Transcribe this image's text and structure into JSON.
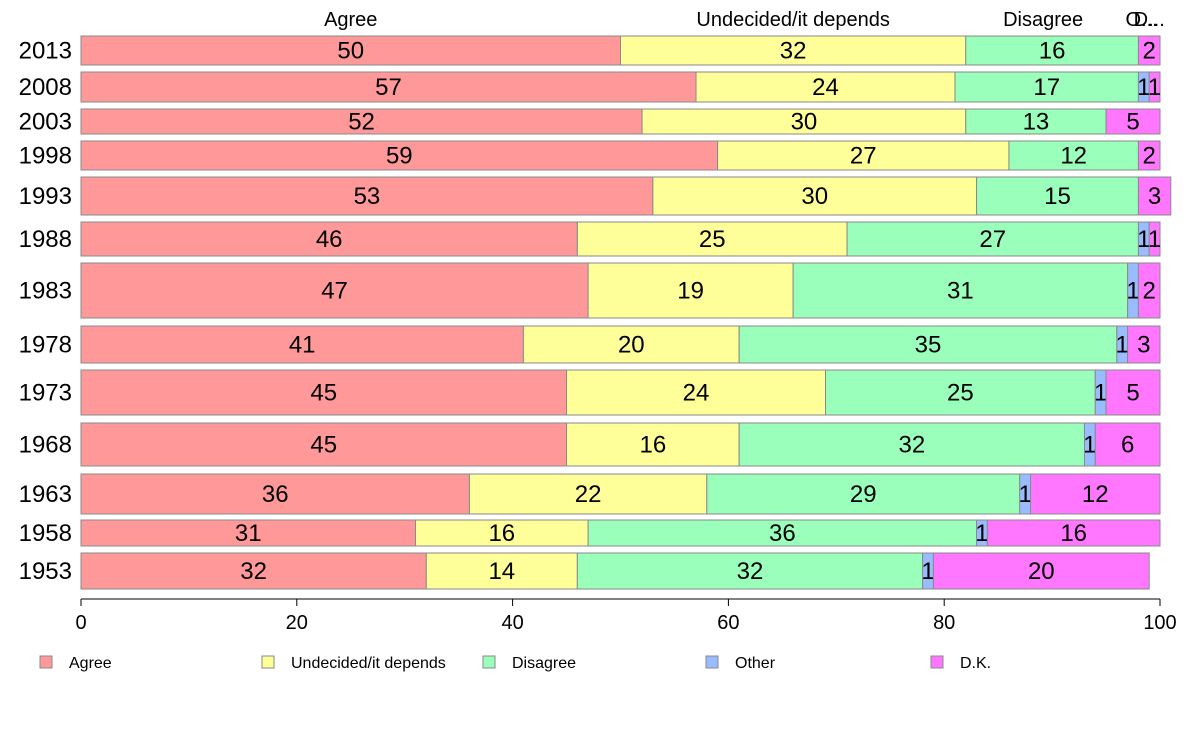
{
  "chart_data": {
    "type": "bar",
    "orientation": "horizontal",
    "stacked": true,
    "categories": [
      "2013",
      "2008",
      "2003",
      "1998",
      "1993",
      "1988",
      "1983",
      "1978",
      "1973",
      "1968",
      "1963",
      "1958",
      "1953"
    ],
    "series": [
      {
        "name": "Agree",
        "color": "#ff9999",
        "values": [
          50,
          57,
          52,
          59,
          53,
          46,
          47,
          41,
          45,
          45,
          36,
          31,
          32
        ]
      },
      {
        "name": "Undecided/it depends",
        "color": "#ffff99",
        "values": [
          32,
          24,
          30,
          27,
          30,
          25,
          19,
          20,
          24,
          16,
          22,
          16,
          14
        ]
      },
      {
        "name": "Disagree",
        "color": "#99ffbb",
        "values": [
          16,
          17,
          13,
          12,
          15,
          27,
          31,
          35,
          25,
          32,
          29,
          36,
          32
        ]
      },
      {
        "name": "Other",
        "color": "#99bbff",
        "values": [
          0,
          1,
          0,
          0,
          0,
          1,
          1,
          1,
          1,
          1,
          1,
          1,
          1
        ]
      },
      {
        "name": "D.K.",
        "color": "#ff77ff",
        "values": [
          2,
          1,
          5,
          2,
          3,
          1,
          2,
          3,
          5,
          6,
          12,
          16,
          20
        ]
      }
    ],
    "top_labels": [
      "Agree",
      "Undecided/it depends",
      "Disagree",
      "O...",
      "D..."
    ],
    "xlim": [
      0,
      100
    ],
    "xticks": [
      "0",
      "20",
      "40",
      "60",
      "80",
      "100"
    ],
    "legend_position": "bottom",
    "grid": false
  }
}
